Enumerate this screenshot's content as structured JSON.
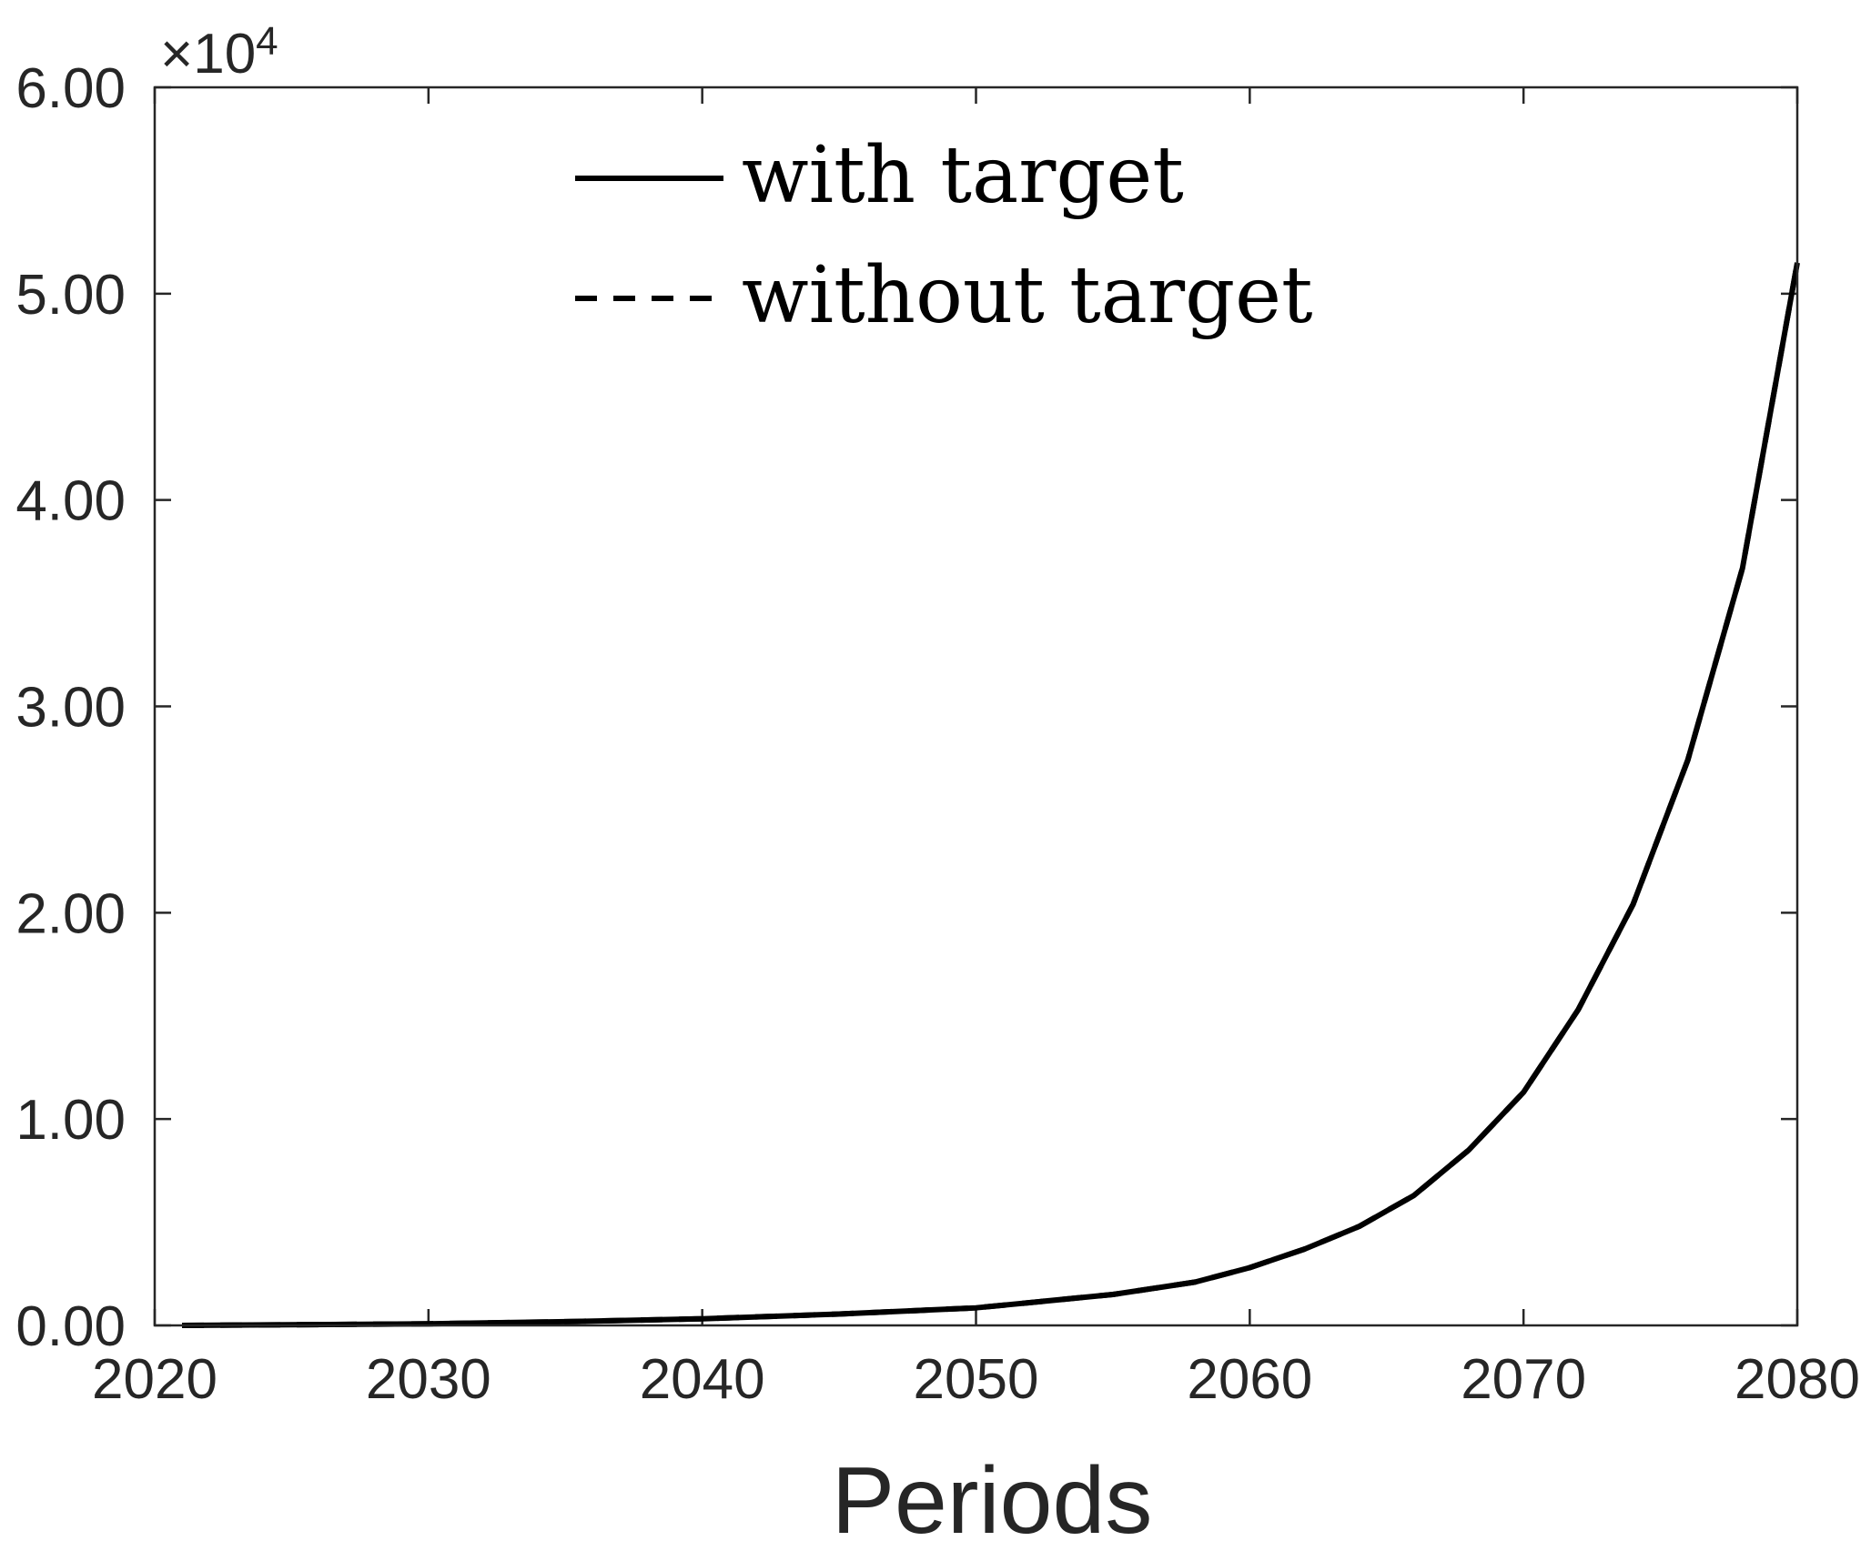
{
  "chart_data": {
    "type": "line",
    "title": "",
    "xlabel": "Periods",
    "ylabel": "",
    "xlim": [
      2020,
      2080
    ],
    "ylim": [
      0,
      60000
    ],
    "y_exponent_label": {
      "base": "×10",
      "power": "4"
    },
    "x_ticks": [
      2020,
      2030,
      2040,
      2050,
      2060,
      2070,
      2080
    ],
    "x_tick_labels": [
      "2020",
      "2030",
      "2040",
      "2050",
      "2060",
      "2070",
      "2080"
    ],
    "y_ticks": [
      0,
      10000,
      20000,
      30000,
      40000,
      50000,
      60000
    ],
    "y_tick_labels": [
      "0.00",
      "1.00",
      "2.00",
      "3.00",
      "4.00",
      "5.00",
      "6.00"
    ],
    "legend": {
      "placement": "top-center",
      "entries": [
        {
          "label": "with target",
          "style": "solid"
        },
        {
          "label": "without target",
          "style": "dashed"
        }
      ]
    },
    "series": [
      {
        "name": "with target",
        "style": "solid",
        "color": "#000000",
        "x": [
          2021,
          2025,
          2030,
          2035,
          2040,
          2045,
          2050,
          2055,
          2058,
          2060,
          2062,
          2064,
          2066,
          2068,
          2070,
          2072,
          2074,
          2076,
          2078,
          2080
        ],
        "y": [
          0,
          30,
          80,
          180,
          320,
          550,
          850,
          1500,
          2100,
          2800,
          3700,
          4800,
          6300,
          8500,
          11300,
          15300,
          20400,
          27400,
          36700,
          51500
        ]
      },
      {
        "name": "without target",
        "style": "dashed",
        "color": "#000000",
        "x": [
          2021,
          2025,
          2030,
          2035,
          2040,
          2045,
          2050,
          2055,
          2058,
          2060,
          2062,
          2064,
          2066,
          2068,
          2070,
          2072,
          2074,
          2076,
          2078,
          2080
        ],
        "y": [
          0,
          30,
          80,
          180,
          320,
          550,
          850,
          1500,
          2100,
          2800,
          3700,
          4800,
          6300,
          8500,
          11300,
          15300,
          20400,
          27400,
          36700,
          51500
        ]
      }
    ]
  }
}
